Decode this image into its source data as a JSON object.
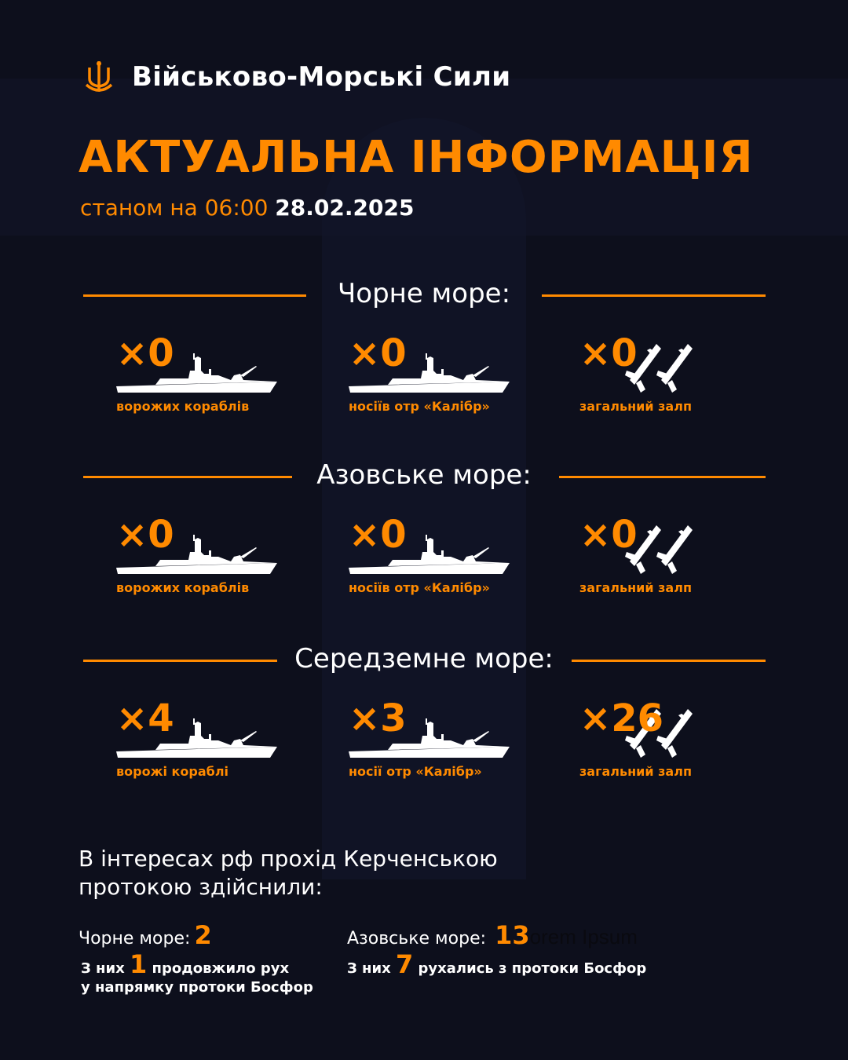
{
  "header": {
    "brand": "Військово-Морські Сили",
    "logo": "navy-trident-anchor-logo",
    "title": "АКТУАЛЬНА ІНФОРМАЦІЯ",
    "subtitle_prefix": "станом на 06:00",
    "date": "28.02.2025"
  },
  "colors": {
    "accent": "#ff8a00",
    "background": "#0d0f1c",
    "text": "#ffffff"
  },
  "sections": [
    {
      "title": "Чорне море:",
      "items": [
        {
          "count": "×0",
          "label": "ворожих кораблів",
          "icon": "warship-icon"
        },
        {
          "count": "×0",
          "label": "носіїв отр «Калібр»",
          "icon": "warship-icon"
        },
        {
          "count": "×0",
          "label": "загальний залп",
          "icon": "missiles-icon"
        }
      ]
    },
    {
      "title": "Азовське море:",
      "items": [
        {
          "count": "×0",
          "label": "ворожих кораблів",
          "icon": "warship-icon"
        },
        {
          "count": "×0",
          "label": "носіїв отр «Калібр»",
          "icon": "warship-icon"
        },
        {
          "count": "×0",
          "label": "загальний залп",
          "icon": "missiles-icon"
        }
      ]
    },
    {
      "title": "Середземне море:",
      "items": [
        {
          "count": "×4",
          "label": "ворожі кораблі",
          "icon": "warship-icon"
        },
        {
          "count": "×3",
          "label": "носії отр «Калібр»",
          "icon": "warship-icon"
        },
        {
          "count": "×26",
          "label": "загальний залп",
          "icon": "missiles-icon"
        }
      ]
    }
  ],
  "kerch": {
    "heading": "В інтересах рф прохід Керченською протокою здійснили:",
    "black_sea": {
      "label": "Чорне море:",
      "count": "2",
      "detail_prefix": "З них",
      "detail_count": "1",
      "detail_suffix": "продовжило рух",
      "detail_line2": "у напрямку протоки Босфор"
    },
    "azov_sea": {
      "label": "Азовське море:",
      "count": "13",
      "placeholder": "orem Ipsum",
      "detail_prefix": "З них",
      "detail_count": "7",
      "detail_suffix": "рухались з протоки Босфор"
    }
  }
}
